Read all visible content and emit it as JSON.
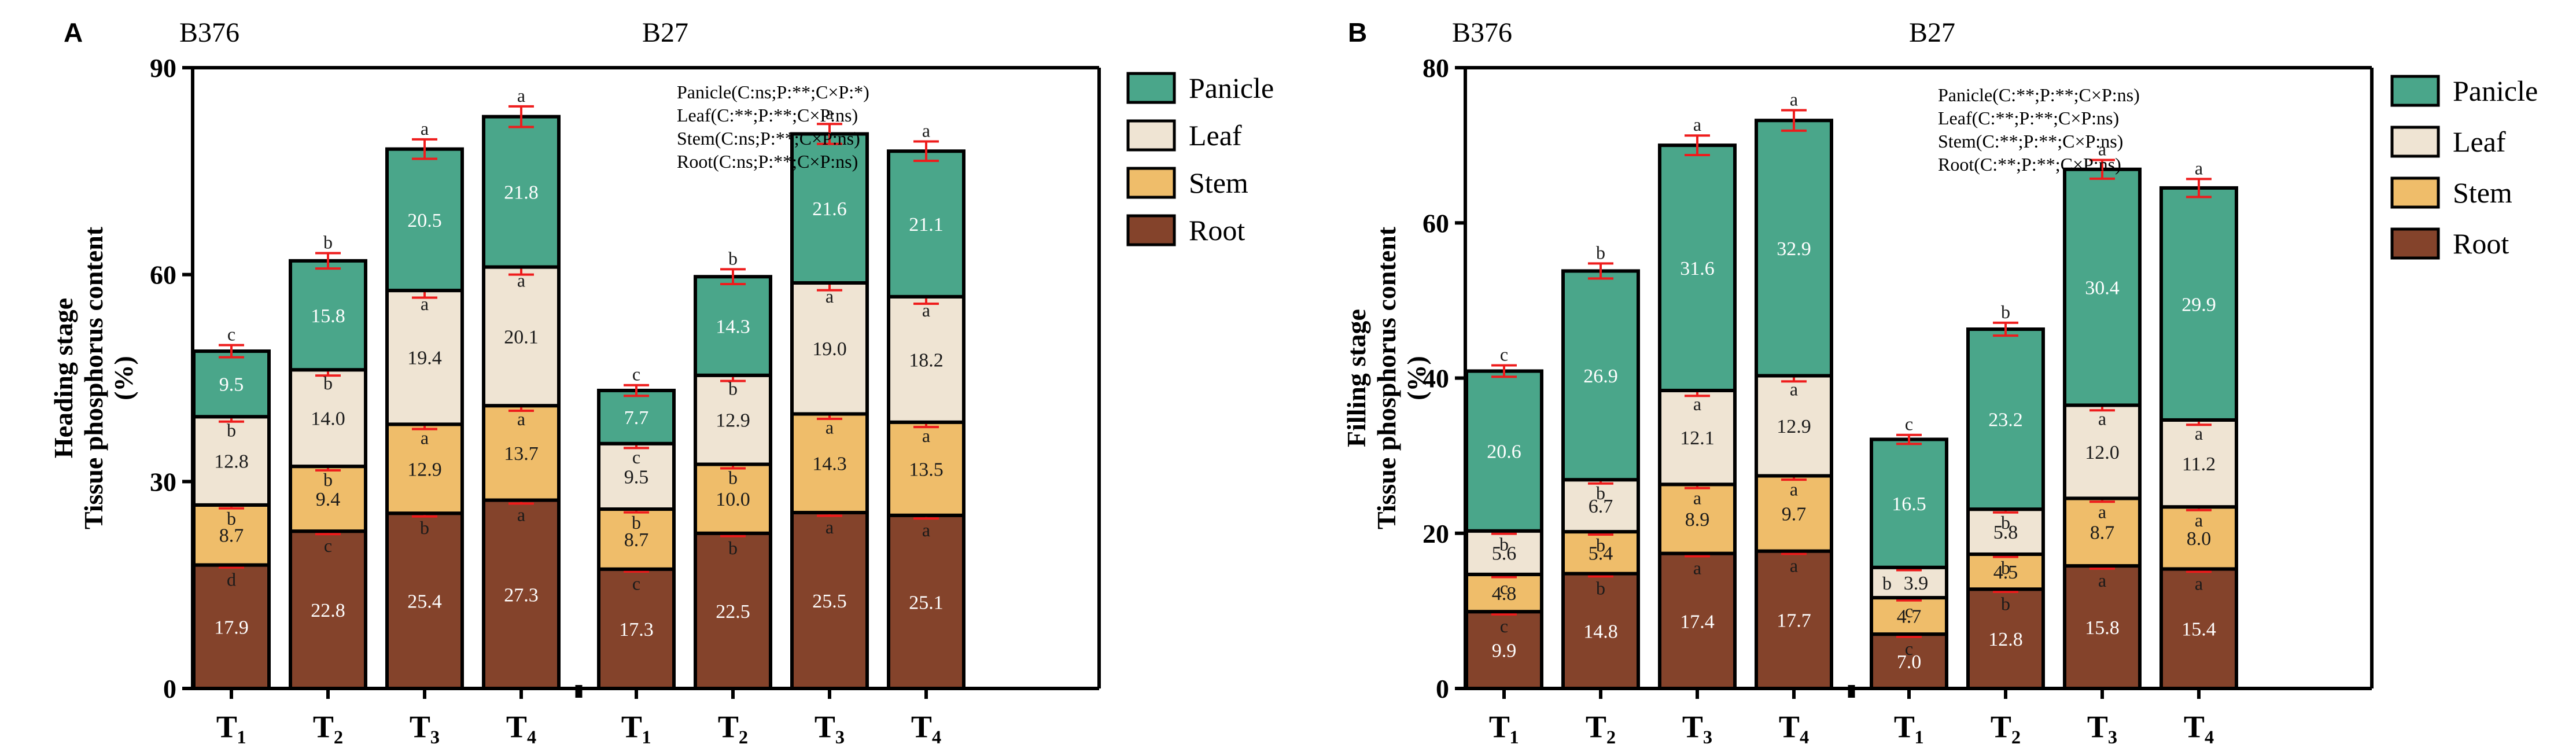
{
  "colors": {
    "Panicle": "#4aa68a",
    "Leaf": "#efe4d3",
    "Stem": "#efbd6a",
    "Root": "#84432b",
    "error": "#ee1c1c",
    "axis": "#000000"
  },
  "chart_data": [
    {
      "type": "bar",
      "stacked": true,
      "panel_label": "A",
      "ylabel_line1": "Heading stage",
      "ylabel_line2": "Tissue phosphorus content",
      "ylabel_line3": "(%)",
      "ylim": [
        0,
        90
      ],
      "yticks": [
        "0",
        "30",
        "60",
        "90"
      ],
      "legend": [
        "Panicle",
        "Leaf",
        "Stem",
        "Root"
      ],
      "stats": [
        "Panicle(C:ns;P:**;C×P:*)",
        "Leaf(C:**;P:**;C×P:ns)",
        "Stem(C:ns;P:**;C×P:ns)",
        "Root(C:ns;P:**;C×P:ns)"
      ],
      "groups": [
        {
          "name": "B376",
          "categories": [
            "T1",
            "T2",
            "T3",
            "T4"
          ],
          "category_labels": [
            "T₁",
            "T₂",
            "T₃",
            "T₄"
          ],
          "series": [
            {
              "name": "Root",
              "values": [
                17.9,
                22.8,
                25.4,
                27.3
              ],
              "labels": [
                "17.9",
                "22.8",
                "25.4",
                "27.3"
              ],
              "letters": [
                "d",
                "c",
                "b",
                "a"
              ]
            },
            {
              "name": "Stem",
              "values": [
                8.7,
                9.4,
                12.9,
                13.7
              ],
              "labels": [
                "8.7",
                "9.4",
                "12.9",
                "13.7"
              ],
              "letters": [
                "b",
                "b",
                "a",
                "a"
              ]
            },
            {
              "name": "Leaf",
              "values": [
                12.8,
                14.0,
                19.4,
                20.1
              ],
              "labels": [
                "12.8",
                "14.0",
                "19.4",
                "20.1"
              ],
              "letters": [
                "b",
                "b",
                "a",
                "a"
              ]
            },
            {
              "name": "Panicle",
              "values": [
                9.5,
                15.8,
                20.5,
                21.8
              ],
              "labels": [
                "9.5",
                "15.8",
                "20.5",
                "21.8"
              ],
              "letters": [
                "c",
                "b",
                "a",
                "a"
              ]
            }
          ]
        },
        {
          "name": "B27",
          "categories": [
            "T1",
            "T2",
            "T3",
            "T4"
          ],
          "category_labels": [
            "T₁",
            "T₂",
            "T₃",
            "T₄"
          ],
          "series": [
            {
              "name": "Root",
              "values": [
                17.3,
                22.5,
                25.5,
                25.1
              ],
              "labels": [
                "17.3",
                "22.5",
                "25.5",
                "25.1"
              ],
              "letters": [
                "c",
                "b",
                "a",
                "a"
              ]
            },
            {
              "name": "Stem",
              "values": [
                8.7,
                10.0,
                14.3,
                13.5
              ],
              "labels": [
                "8.7",
                "10.0",
                "14.3",
                "13.5"
              ],
              "letters": [
                "b",
                "b",
                "a",
                "a"
              ]
            },
            {
              "name": "Leaf",
              "values": [
                9.5,
                12.9,
                19.0,
                18.2
              ],
              "labels": [
                "9.5",
                "12.9",
                "19.0",
                "18.2"
              ],
              "letters": [
                "c",
                "b",
                "a",
                "a"
              ]
            },
            {
              "name": "Panicle",
              "values": [
                7.7,
                14.3,
                21.6,
                21.1
              ],
              "labels": [
                "7.7",
                "14.3",
                "21.6",
                "21.1"
              ],
              "letters": [
                "c",
                "b",
                "a",
                "a"
              ]
            }
          ]
        }
      ]
    },
    {
      "type": "bar",
      "stacked": true,
      "panel_label": "B",
      "ylabel_line1": "Filling stage",
      "ylabel_line2": "Tissue phosphorus content",
      "ylabel_line3": "(%)",
      "ylim": [
        0,
        80
      ],
      "yticks": [
        "0",
        "20",
        "40",
        "60",
        "80"
      ],
      "legend": [
        "Panicle",
        "Leaf",
        "Stem",
        "Root"
      ],
      "stats": [
        "Panicle(C:**;P:**;C×P:ns)",
        "Leaf(C:**;P:**;C×P:ns)",
        "Stem(C:**;P:**;C×P:ns)",
        "Root(C:**;P:**;C×P:ns)"
      ],
      "groups": [
        {
          "name": "B376",
          "categories": [
            "T1",
            "T2",
            "T3",
            "T4"
          ],
          "category_labels": [
            "T₁",
            "T₂",
            "T₃",
            "T₄"
          ],
          "series": [
            {
              "name": "Root",
              "values": [
                9.9,
                14.8,
                17.4,
                17.7
              ],
              "labels": [
                "9.9",
                "14.8",
                "17.4",
                "17.7"
              ],
              "letters": [
                "c",
                "b",
                "a",
                "a"
              ]
            },
            {
              "name": "Stem",
              "values": [
                4.8,
                5.4,
                8.9,
                9.7
              ],
              "labels": [
                "4.8",
                "5.4",
                "8.9",
                "9.7"
              ],
              "letters": [
                "c",
                "b",
                "a",
                "a"
              ]
            },
            {
              "name": "Leaf",
              "values": [
                5.6,
                6.7,
                12.1,
                12.9
              ],
              "labels": [
                "5.6",
                "6.7",
                "12.1",
                "12.9"
              ],
              "letters": [
                "b",
                "b",
                "a",
                "a"
              ]
            },
            {
              "name": "Panicle",
              "values": [
                20.6,
                26.9,
                31.6,
                32.9
              ],
              "labels": [
                "20.6",
                "26.9",
                "31.6",
                "32.9"
              ],
              "letters": [
                "c",
                "b",
                "a",
                "a"
              ]
            }
          ]
        },
        {
          "name": "B27",
          "categories": [
            "T1",
            "T2",
            "T3",
            "T4"
          ],
          "category_labels": [
            "T₁",
            "T₂",
            "T₃",
            "T₄"
          ],
          "series": [
            {
              "name": "Root",
              "values": [
                7.0,
                12.8,
                15.8,
                15.4
              ],
              "labels": [
                "7.0",
                "12.8",
                "15.8",
                "15.4"
              ],
              "letters": [
                "c",
                "b",
                "a",
                "a"
              ]
            },
            {
              "name": "Stem",
              "values": [
                4.7,
                4.5,
                8.7,
                8.0
              ],
              "labels": [
                "4.7",
                "4.5",
                "8.7",
                "8.0"
              ],
              "letters": [
                "c",
                "b",
                "a",
                "a"
              ]
            },
            {
              "name": "Leaf",
              "values": [
                3.9,
                5.8,
                12.0,
                11.2
              ],
              "labels": [
                "3.9",
                "5.8",
                "12.0",
                "11.2"
              ],
              "letters": [
                "b",
                "b",
                "a",
                "a"
              ]
            },
            {
              "name": "Panicle",
              "values": [
                16.5,
                23.2,
                30.4,
                29.9
              ],
              "labels": [
                "16.5",
                "23.2",
                "30.4",
                "29.9"
              ],
              "letters": [
                "c",
                "b",
                "a",
                "a"
              ]
            }
          ]
        }
      ]
    }
  ]
}
